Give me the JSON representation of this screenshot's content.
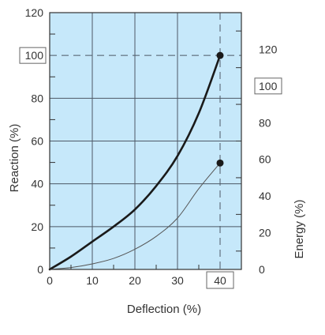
{
  "chart_data": {
    "type": "line",
    "xlabel": "Deflection (%)",
    "ylabel": "Reaction (%)",
    "y2label": "Energy (%)",
    "xlim": [
      0,
      45
    ],
    "ylim": [
      0,
      120
    ],
    "y2lim": [
      0,
      140
    ],
    "x_ticks": [
      0,
      10,
      20,
      30,
      40
    ],
    "y_ticks": [
      0,
      20,
      40,
      60,
      80,
      100,
      120
    ],
    "y2_ticks": [
      0,
      20,
      40,
      60,
      80,
      100,
      120
    ],
    "boxed_ticks": {
      "x": 40,
      "y": 100,
      "y2": 100
    },
    "grid": true,
    "minor_gridlines": true,
    "series": [
      {
        "axis": "left",
        "x": [
          0,
          5,
          10,
          15,
          20,
          25,
          30,
          35,
          40
        ],
        "y": [
          0,
          6,
          13,
          20,
          28,
          39,
          53,
          73,
          100
        ],
        "end_marker": true
      },
      {
        "axis": "right",
        "x": [
          0,
          5,
          10,
          15,
          20,
          25,
          30,
          35,
          40
        ],
        "y": [
          0,
          1,
          3,
          6,
          11,
          18,
          28,
          44,
          58
        ],
        "end_marker": true
      }
    ],
    "colors": {
      "plot_background": "#c6e8fa",
      "grid": "#4d5966",
      "reaction_curve": "#1a1a1a",
      "energy_curve": "#555555",
      "text": "#333333"
    }
  }
}
